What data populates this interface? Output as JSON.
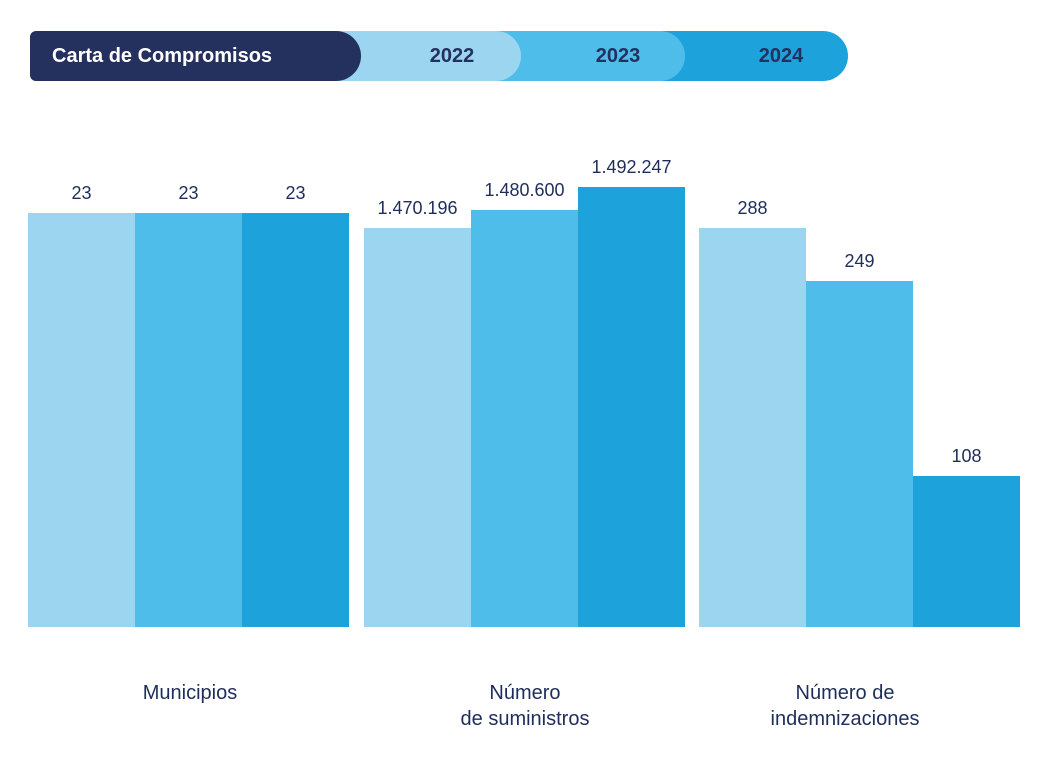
{
  "header": {
    "title": "Carta de Compromisos",
    "years": [
      "2022",
      "2023",
      "2024"
    ]
  },
  "colors": {
    "title_bg": "#24305e",
    "text": "#1f2d5a",
    "series_2022": "#9bd5f0",
    "series_2023": "#4fbde9",
    "series_2024": "#1da2dc"
  },
  "chart_data": {
    "type": "bar",
    "title": "Carta de Compromisos",
    "categories": [
      "Municipios",
      "Número\nde suministros",
      "Número de\nindemnizaciones"
    ],
    "series": [
      {
        "name": "2022",
        "values": [
          23,
          1470196,
          288
        ],
        "labels": [
          "23",
          "1.470.196",
          "288"
        ]
      },
      {
        "name": "2023",
        "values": [
          23,
          1480600,
          249
        ],
        "labels": [
          "23",
          "1.480.600",
          "249"
        ]
      },
      {
        "name": "2024",
        "values": [
          23,
          1492247,
          108
        ],
        "labels": [
          "23",
          "1.492.247",
          "108"
        ]
      }
    ],
    "legend_position": "top",
    "grid": false,
    "note": "Each category group uses its own scale"
  }
}
